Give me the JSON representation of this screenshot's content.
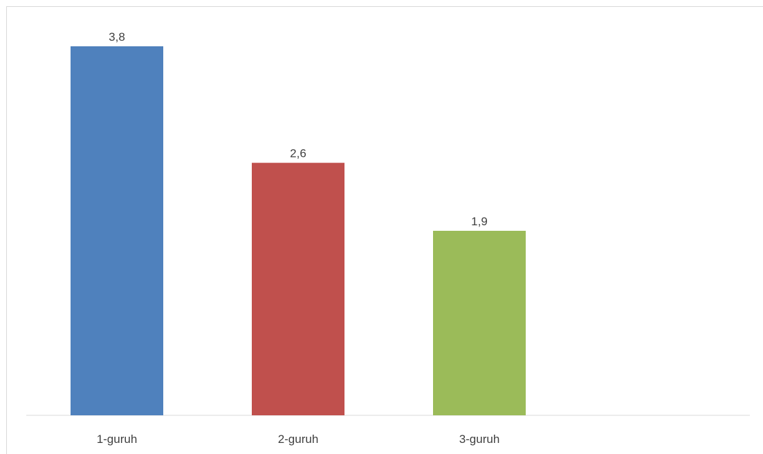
{
  "chart_data": {
    "type": "bar",
    "categories": [
      "1-guruh",
      "2-guruh",
      "3-guruh"
    ],
    "values": [
      3.8,
      2.6,
      1.9
    ],
    "data_labels": [
      "3,8",
      "2,6",
      "1,9"
    ],
    "colors": [
      "#4f81bd",
      "#c0504d",
      "#9bbb59"
    ],
    "title": "",
    "xlabel": "",
    "ylabel": "",
    "ylim": [
      0,
      3.8
    ],
    "grid": false,
    "legend": "none"
  }
}
